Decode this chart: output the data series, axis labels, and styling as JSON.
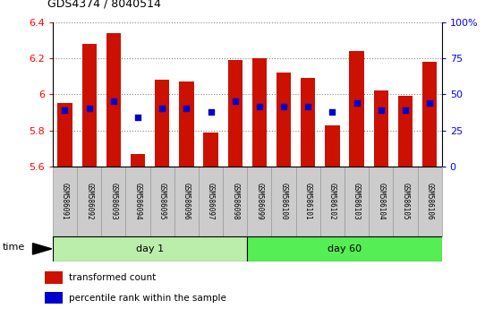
{
  "title": "GDS4374 / 8040514",
  "samples": [
    "GSM586091",
    "GSM586092",
    "GSM586093",
    "GSM586094",
    "GSM586095",
    "GSM586096",
    "GSM586097",
    "GSM586098",
    "GSM586099",
    "GSM586100",
    "GSM586101",
    "GSM586102",
    "GSM586103",
    "GSM586104",
    "GSM586105",
    "GSM586106"
  ],
  "transformed_count": [
    5.95,
    6.28,
    6.34,
    5.67,
    6.08,
    6.07,
    5.79,
    6.19,
    6.2,
    6.12,
    6.09,
    5.83,
    6.24,
    6.02,
    5.99,
    6.18
  ],
  "percentile_rank": [
    5.91,
    5.92,
    5.96,
    5.87,
    5.92,
    5.92,
    5.9,
    5.96,
    5.93,
    5.93,
    5.93,
    5.9,
    5.95,
    5.91,
    5.91,
    5.95
  ],
  "bar_color": "#cc1100",
  "dot_color": "#0000cc",
  "ylim_left": [
    5.6,
    6.4
  ],
  "ylim_right": [
    0,
    100
  ],
  "yticks_left": [
    5.6,
    5.8,
    6.0,
    6.2,
    6.4
  ],
  "yticks_right": [
    0,
    25,
    50,
    75,
    100
  ],
  "ytick_labels_right": [
    "0",
    "25",
    "50",
    "75",
    "100%"
  ],
  "day1_samples": 8,
  "day60_samples": 8,
  "day1_label": "day 1",
  "day60_label": "day 60",
  "time_label": "time",
  "legend_bar": "transformed count",
  "legend_dot": "percentile rank within the sample",
  "bar_width": 0.6,
  "day1_bg": "#bbeeaa",
  "day60_bg": "#55ee55",
  "xticklabel_bg": "#cccccc",
  "xticklabel_border": "#999999"
}
